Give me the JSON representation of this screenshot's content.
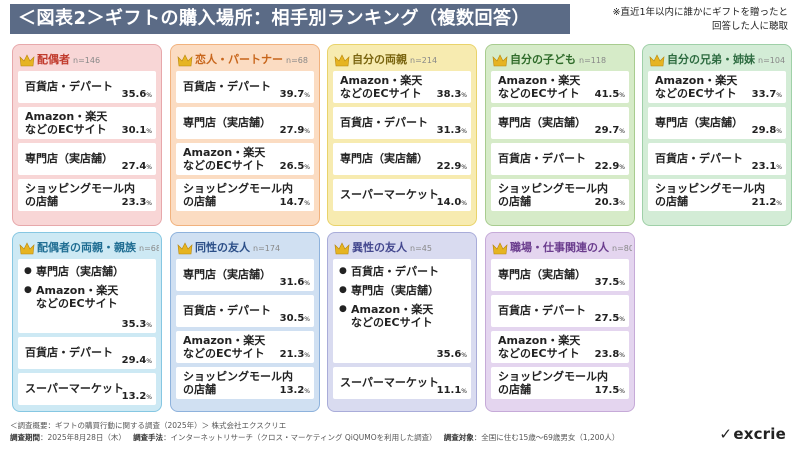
{
  "header": {
    "title": "＜図表2＞ギフトの購入場所：相手別ランキング（複数回答）",
    "note_line1": "※直近1年以内に誰かにギフトを贈ったと",
    "note_line2": "回答した人に聴取"
  },
  "chart_data": [
    {
      "type": "table",
      "title": "配偶者",
      "n": "n=146",
      "accent": "#e7a8ab",
      "bg": "#f8d6d6",
      "items": [
        {
          "label": [
            "百貨店・デパート"
          ],
          "value": "35.6"
        },
        {
          "label": [
            "Amazon・楽天",
            "などのECサイト"
          ],
          "value": "30.1"
        },
        {
          "label": [
            "専門店（実店舗）"
          ],
          "value": "27.4"
        },
        {
          "label": [
            "ショッピングモール内",
            "の店舗"
          ],
          "value": "23.3"
        }
      ]
    },
    {
      "type": "table",
      "title": "恋人・パートナー",
      "n": "n=68",
      "accent": "#f1b27e",
      "bg": "#fbdcc2",
      "items": [
        {
          "label": [
            "百貨店・デパート"
          ],
          "value": "39.7"
        },
        {
          "label": [
            "専門店（実店舗）"
          ],
          "value": "27.9"
        },
        {
          "label": [
            "Amazon・楽天",
            "などのECサイト"
          ],
          "value": "26.5"
        },
        {
          "label": [
            "ショッピングモール内",
            "の店舗"
          ],
          "value": "14.7"
        }
      ]
    },
    {
      "type": "table",
      "title": "自分の両親",
      "n": "n=214",
      "accent": "#e9d36b",
      "bg": "#f7ebb0",
      "items": [
        {
          "label": [
            "Amazon・楽天",
            "などのECサイト"
          ],
          "value": "38.3"
        },
        {
          "label": [
            "百貨店・デパート"
          ],
          "value": "31.3"
        },
        {
          "label": [
            "専門店（実店舗）"
          ],
          "value": "22.9"
        },
        {
          "label": [
            "スーパーマーケット"
          ],
          "value": "14.0"
        }
      ]
    },
    {
      "type": "table",
      "title": "自分の子ども",
      "n": "n=118",
      "accent": "#a8cc8f",
      "bg": "#d6ebc8",
      "items": [
        {
          "label": [
            "Amazon・楽天",
            "などのECサイト"
          ],
          "value": "41.5"
        },
        {
          "label": [
            "専門店（実店舗）"
          ],
          "value": "29.7"
        },
        {
          "label": [
            "百貨店・デパート"
          ],
          "value": "22.9"
        },
        {
          "label": [
            "ショッピングモール内",
            "の店舗"
          ],
          "value": "20.3"
        }
      ]
    },
    {
      "type": "table",
      "title": "自分の兄弟・姉妹",
      "n": "n=104",
      "accent": "#9fd0a8",
      "bg": "#d3ecd6",
      "items": [
        {
          "label": [
            "Amazon・楽天",
            "などのECサイト"
          ],
          "value": "33.7"
        },
        {
          "label": [
            "専門店（実店舗）"
          ],
          "value": "29.8"
        },
        {
          "label": [
            "百貨店・デパート"
          ],
          "value": "23.1"
        },
        {
          "label": [
            "ショッピングモール内",
            "の店舗"
          ],
          "value": "21.2"
        }
      ]
    },
    {
      "type": "table",
      "title": "配偶者の両親・親族",
      "n": "n=68",
      "accent": "#86c7e2",
      "bg": "#cde9f4",
      "groups": [
        {
          "lines": [
            [
              "専門店（実店舗）"
            ],
            [
              "Amazon・楽天",
              "などのECサイト"
            ]
          ],
          "value": "35.3"
        }
      ],
      "items": [
        {
          "label": [
            "百貨店・デパート"
          ],
          "value": "29.4"
        },
        {
          "label": [
            "スーパーマーケット"
          ],
          "value": "13.2"
        }
      ]
    },
    {
      "type": "table",
      "title": "同性の友人",
      "n": "n=174",
      "accent": "#8eb2dc",
      "bg": "#d0e0f2",
      "items": [
        {
          "label": [
            "専門店（実店舗）"
          ],
          "value": "31.6"
        },
        {
          "label": [
            "百貨店・デパート"
          ],
          "value": "30.5"
        },
        {
          "label": [
            "Amazon・楽天",
            "などのECサイト"
          ],
          "value": "21.3"
        },
        {
          "label": [
            "ショッピングモール内",
            "の店舗"
          ],
          "value": "13.2"
        }
      ]
    },
    {
      "type": "table",
      "title": "異性の友人",
      "n": "n=45",
      "accent": "#a9acd9",
      "bg": "#d9dbf0",
      "groups": [
        {
          "lines": [
            [
              "百貨店・デパート"
            ],
            [
              "専門店（実店舗）"
            ],
            [
              "Amazon・楽天",
              "などのECサイト"
            ]
          ],
          "value": "35.6"
        }
      ],
      "items": [
        {
          "label": [
            "スーパーマーケット"
          ],
          "value": "11.1"
        }
      ]
    },
    {
      "type": "table",
      "title": "職場・仕事関連の人",
      "n": "n=80",
      "accent": "#c6aad8",
      "bg": "#e4d5ef",
      "items": [
        {
          "label": [
            "専門店（実店舗）"
          ],
          "value": "37.5"
        },
        {
          "label": [
            "百貨店・デパート"
          ],
          "value": "27.5"
        },
        {
          "label": [
            "Amazon・楽天",
            "などのECサイト"
          ],
          "value": "23.8"
        },
        {
          "label": [
            "ショッピングモール内",
            "の店舗"
          ],
          "value": "17.5"
        }
      ]
    }
  ],
  "units": {
    "pct": "%"
  },
  "footer": {
    "line1": "＜調査概要：ギフトの購買行動に関する調査（2025年）＞ 株式会社エクスクリエ",
    "period_label": "調査期間",
    "period": "：2025年8月28日（木）",
    "method_label": "調査手法",
    "method": "：インターネットリサーチ（クロス・マーケティング QiQUMOを利用した調査）",
    "target_label": "調査対象",
    "target": "：全国に住む15歳〜69歳男女（1,200人）"
  },
  "brand": {
    "name": "excrie",
    "mark": "✓"
  }
}
